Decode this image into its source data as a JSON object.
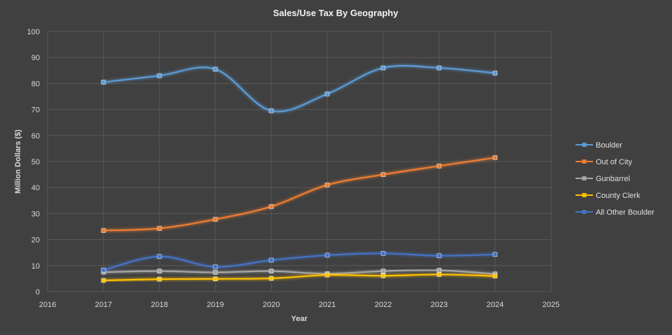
{
  "chart_data": {
    "type": "scatter",
    "title": "Sales/Use Tax By Geography",
    "xlabel": "Year",
    "ylabel": "Million Dollars ($)",
    "xlim": [
      2016,
      2025
    ],
    "ylim": [
      0,
      100
    ],
    "xticks": [
      "2016",
      "2017",
      "2018",
      "2019",
      "2020",
      "2021",
      "2022",
      "2023",
      "2024",
      "2025"
    ],
    "yticks": [
      "0",
      "10",
      "20",
      "30",
      "40",
      "50",
      "60",
      "70",
      "80",
      "90",
      "100"
    ],
    "grid": true,
    "legend_position": "right",
    "x": [
      2017,
      2018,
      2019,
      2020,
      2021,
      2022,
      2023,
      2024
    ],
    "series": [
      {
        "name": "Boulder",
        "color": "#5b9bd5",
        "values": [
          80.5,
          83,
          85.5,
          69.5,
          76,
          86,
          86,
          84
        ]
      },
      {
        "name": "Out of City",
        "color": "#ed7d31",
        "values": [
          23.5,
          24.3,
          27.8,
          32.7,
          41,
          45,
          48.3,
          51.5
        ]
      },
      {
        "name": "Gunbarrel",
        "color": "#a5a5a5",
        "values": [
          7.5,
          7.9,
          7.4,
          7.9,
          6.9,
          7.9,
          8.2,
          6.8
        ]
      },
      {
        "name": "County Clerk",
        "color": "#ffc000",
        "values": [
          4.3,
          4.8,
          4.9,
          5.1,
          6.4,
          6.1,
          6.6,
          6
        ]
      },
      {
        "name": "All Other Boulder",
        "color": "#4472c4",
        "values": [
          8.3,
          13.5,
          9.5,
          12.1,
          14,
          14.7,
          13.8,
          14.3
        ]
      }
    ]
  }
}
